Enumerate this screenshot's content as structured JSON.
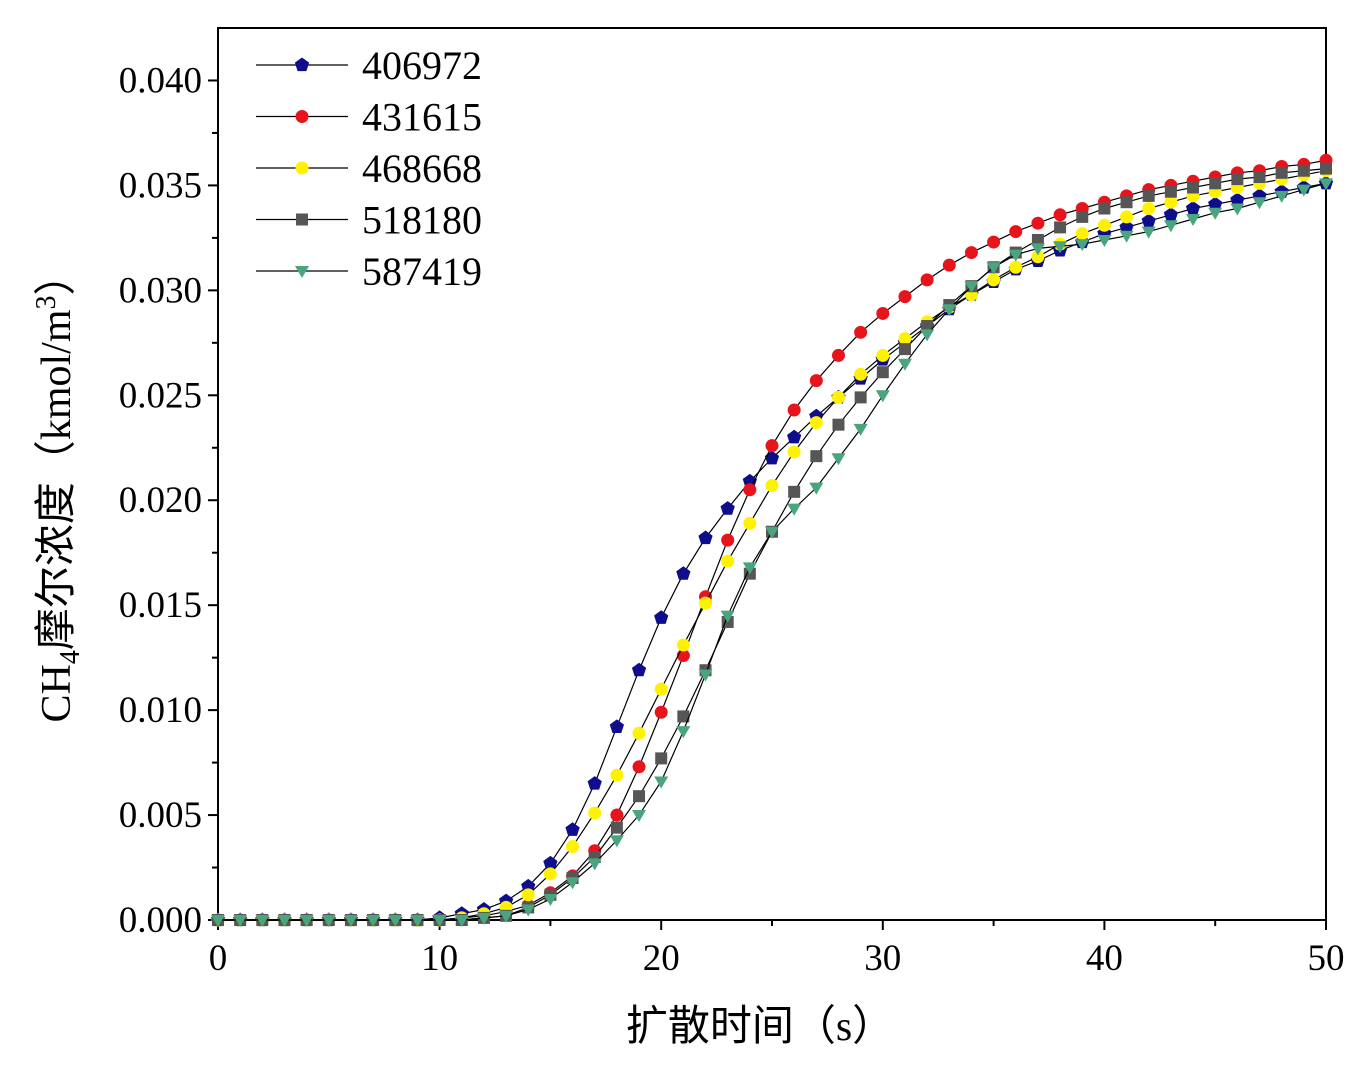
{
  "chart_data": {
    "type": "line",
    "title": "",
    "xlabel": "扩散时间（s）",
    "ylabel": {
      "main": "CH",
      "sub": "4",
      "middle": "摩尔浓度（kmol/m",
      "sup": "3",
      "end": "）"
    },
    "xlim": [
      0,
      50
    ],
    "ylim": [
      0,
      0.0425
    ],
    "xticks": [
      "0",
      "10",
      "20",
      "30",
      "40",
      "50"
    ],
    "yticks": [
      "0.000",
      "0.005",
      "0.010",
      "0.015",
      "0.020",
      "0.025",
      "0.030",
      "0.035",
      "0.040"
    ],
    "grid": false,
    "legend_position": "top-left",
    "x": [
      0,
      1,
      2,
      3,
      4,
      5,
      6,
      7,
      8,
      9,
      10,
      11,
      12,
      13,
      14,
      15,
      16,
      17,
      18,
      19,
      20,
      21,
      22,
      23,
      24,
      25,
      26,
      27,
      28,
      29,
      30,
      31,
      32,
      33,
      34,
      35,
      36,
      37,
      38,
      39,
      40,
      41,
      42,
      43,
      44,
      45,
      46,
      47,
      48,
      49,
      50
    ],
    "series": [
      {
        "name": "406972",
        "color": "#0E0E8C",
        "marker": "pentagon",
        "values": [
          0,
          0,
          0,
          0,
          0,
          0,
          0,
          0,
          0,
          0,
          0.0001,
          0.0003,
          0.0005,
          0.0009,
          0.0016,
          0.0027,
          0.0043,
          0.0065,
          0.0092,
          0.0119,
          0.0144,
          0.0165,
          0.0182,
          0.0196,
          0.0209,
          0.022,
          0.023,
          0.024,
          0.0249,
          0.0258,
          0.0267,
          0.0275,
          0.0283,
          0.0291,
          0.0298,
          0.0304,
          0.031,
          0.0314,
          0.0319,
          0.0323,
          0.0327,
          0.033,
          0.0333,
          0.0336,
          0.0339,
          0.0341,
          0.0343,
          0.0345,
          0.0347,
          0.0349,
          0.0351
        ]
      },
      {
        "name": "431615",
        "color": "#E8141B",
        "marker": "circle",
        "values": [
          0,
          0,
          0,
          0,
          0,
          0,
          0,
          0,
          0,
          0,
          0,
          0.0001,
          0.0002,
          0.0004,
          0.0007,
          0.0013,
          0.0021,
          0.0033,
          0.005,
          0.0073,
          0.0099,
          0.0126,
          0.0154,
          0.0181,
          0.0205,
          0.0226,
          0.0243,
          0.0257,
          0.0269,
          0.028,
          0.0289,
          0.0297,
          0.0305,
          0.0312,
          0.0318,
          0.0323,
          0.0328,
          0.0332,
          0.0336,
          0.0339,
          0.0342,
          0.0345,
          0.0348,
          0.035,
          0.0352,
          0.0354,
          0.0356,
          0.0357,
          0.0359,
          0.036,
          0.0362
        ]
      },
      {
        "name": "468668",
        "color": "#FFF200",
        "marker": "circle",
        "values": [
          0,
          0,
          0,
          0,
          0,
          0,
          0,
          0,
          0,
          0,
          0,
          0.0001,
          0.0003,
          0.0006,
          0.0012,
          0.0022,
          0.0035,
          0.0051,
          0.0069,
          0.0089,
          0.011,
          0.0131,
          0.0151,
          0.0171,
          0.0189,
          0.0207,
          0.0223,
          0.0237,
          0.0249,
          0.026,
          0.0269,
          0.0277,
          0.0285,
          0.0292,
          0.0298,
          0.0305,
          0.0311,
          0.0316,
          0.0322,
          0.0327,
          0.0331,
          0.0335,
          0.0339,
          0.0342,
          0.0345,
          0.0347,
          0.0349,
          0.0351,
          0.0353,
          0.0355,
          0.0357
        ]
      },
      {
        "name": "518180",
        "color": "#565656",
        "marker": "square",
        "values": [
          0,
          0,
          0,
          0,
          0,
          0,
          0,
          0,
          0,
          0,
          0,
          0,
          0.0001,
          0.0002,
          0.0006,
          0.0012,
          0.002,
          0.003,
          0.0044,
          0.0059,
          0.0077,
          0.0097,
          0.0119,
          0.0142,
          0.0165,
          0.0185,
          0.0204,
          0.0221,
          0.0236,
          0.0249,
          0.0261,
          0.0272,
          0.0283,
          0.0293,
          0.0302,
          0.0311,
          0.0318,
          0.0324,
          0.033,
          0.0335,
          0.0339,
          0.0342,
          0.0345,
          0.0347,
          0.0349,
          0.0351,
          0.0353,
          0.0354,
          0.0356,
          0.0357,
          0.0358
        ]
      },
      {
        "name": "587419",
        "color": "#4AA57E",
        "marker": "triangle-down",
        "values": [
          0,
          0,
          0,
          0,
          0,
          0,
          0,
          0,
          0,
          0,
          0,
          0,
          0.0001,
          0.0002,
          0.0005,
          0.001,
          0.0018,
          0.0027,
          0.0038,
          0.005,
          0.0066,
          0.009,
          0.0117,
          0.0145,
          0.0168,
          0.0185,
          0.0196,
          0.0206,
          0.022,
          0.0234,
          0.025,
          0.0265,
          0.0279,
          0.0291,
          0.0302,
          0.0311,
          0.0317,
          0.032,
          0.0321,
          0.0322,
          0.0324,
          0.0326,
          0.0328,
          0.0331,
          0.0334,
          0.0337,
          0.0339,
          0.0342,
          0.0345,
          0.0348,
          0.0351
        ]
      }
    ]
  }
}
